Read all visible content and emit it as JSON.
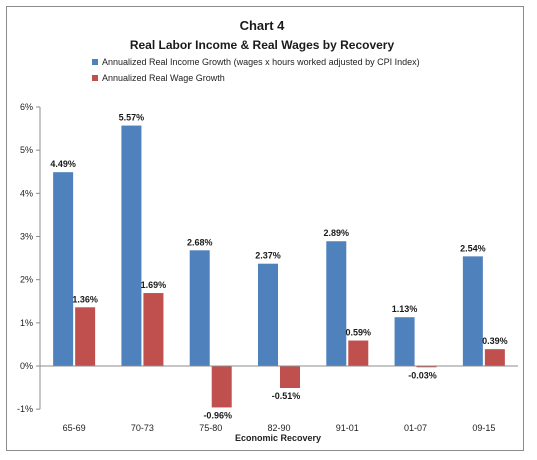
{
  "chart_data": {
    "type": "bar",
    "title": "Chart 4",
    "subtitle": "Real Labor Income & Real Wages by Recovery",
    "xlabel": "Economic Recovery",
    "ylabel": "",
    "categories": [
      "65-69",
      "70-73",
      "75-80",
      "82-90",
      "91-01",
      "01-07",
      "09-15"
    ],
    "series": [
      {
        "name": "Annualized Real Income Growth (wages x hours worked adjusted by CPI Index)",
        "color": "#4f81bd",
        "values": [
          4.49,
          5.57,
          2.68,
          2.37,
          2.89,
          1.13,
          2.54
        ],
        "labels": [
          "4.49%",
          "5.57%",
          "2.68%",
          "2.37%",
          "2.89%",
          "1.13%",
          "2.54%"
        ]
      },
      {
        "name": "Annualized Real Wage Growth",
        "color": "#c0504d",
        "values": [
          1.36,
          1.69,
          -0.96,
          -0.51,
          0.59,
          -0.03,
          0.39
        ],
        "labels": [
          "1.36%",
          "1.69%",
          "-0.96%",
          "-0.51%",
          "0.59%",
          "-0.03%",
          "0.39%"
        ]
      }
    ],
    "ylim": [
      -1,
      6
    ],
    "yticks": [
      -1,
      0,
      1,
      2,
      3,
      4,
      5,
      6
    ],
    "ytick_labels": [
      "-1%",
      "0%",
      "1%",
      "2%",
      "3%",
      "4%",
      "5%",
      "6%"
    ],
    "grid": false,
    "legend": "top"
  }
}
